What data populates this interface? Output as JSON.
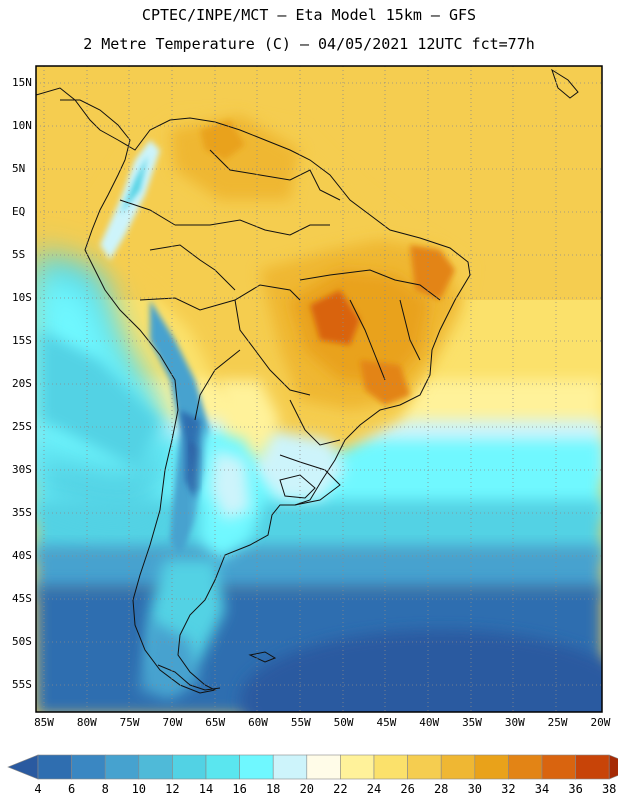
{
  "header": {
    "line1": "CPTEC/INPE/MCT –  Eta Model 15km – GFS",
    "line2": "2 Metre Temperature (C) – 04/05/2021 12UTC fct=77h"
  },
  "axes": {
    "lat_labels": [
      "15N",
      "10N",
      "5N",
      "EQ",
      "5S",
      "10S",
      "15S",
      "20S",
      "25S",
      "30S",
      "35S",
      "40S",
      "45S",
      "50S",
      "55S"
    ],
    "lon_labels": [
      "85W",
      "80W",
      "75W",
      "70W",
      "65W",
      "60W",
      "55W",
      "50W",
      "45W",
      "40W",
      "35W",
      "30W",
      "25W",
      "20W"
    ]
  },
  "colorbar": {
    "labels": [
      "4",
      "6",
      "8",
      "10",
      "12",
      "14",
      "16",
      "18",
      "20",
      "22",
      "24",
      "26",
      "28",
      "30",
      "32",
      "34",
      "36",
      "38"
    ],
    "colors": [
      "#2a5aa0",
      "#2f6eb0",
      "#3a87c2",
      "#46a2cf",
      "#4fbad8",
      "#52d2e4",
      "#5ae6ef",
      "#6ff8ff",
      "#cdf4fb",
      "#fffce8",
      "#fff29a",
      "#fbe16b",
      "#f5cd50",
      "#efb733",
      "#e9a21a",
      "#e38415",
      "#d9640f",
      "#c84408",
      "#a52a05"
    ]
  }
}
